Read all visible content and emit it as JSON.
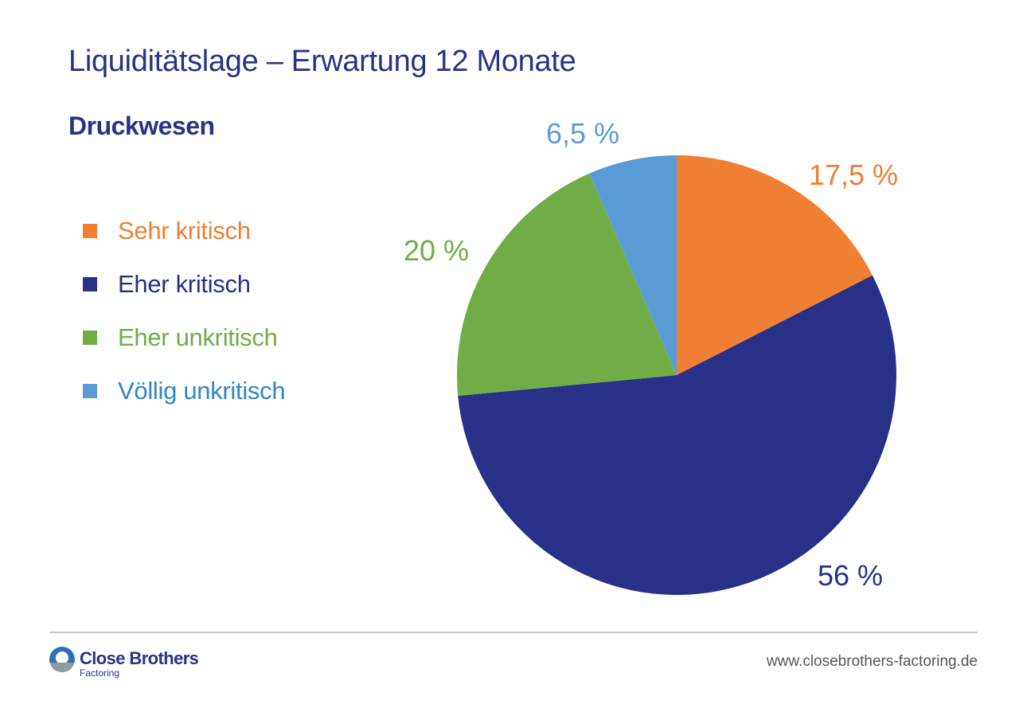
{
  "title": "Liquiditätslage – Erwartung 12 Monate",
  "subtitle": "Druckwesen",
  "colors": {
    "title": "#2a3285",
    "sehr_kritisch": "#ee7f33",
    "eher_kritisch": "#283087",
    "eher_unkritisch": "#70ad47",
    "voellig_unkritisch": "#5b9bd5"
  },
  "chart_data": {
    "type": "pie",
    "title": "Liquiditätslage – Erwartung 12 Monate",
    "subtitle": "Druckwesen",
    "legend_placement": "left",
    "slices": [
      {
        "name": "Sehr kritisch",
        "value": 17.5,
        "label": "17,5 %",
        "color": "#ee7f33",
        "legend_color": "#ee7f33"
      },
      {
        "name": "Eher kritisch",
        "value": 56,
        "label": "56 %",
        "color": "#283087",
        "legend_color": "#283087"
      },
      {
        "name": "Eher unkritisch",
        "value": 20,
        "label": "20 %",
        "color": "#70ad47",
        "legend_color": "#70ad47"
      },
      {
        "name": "Völlig unkritisch",
        "value": 6.5,
        "label": "6,5 %",
        "color": "#5b9bd5",
        "legend_color": "#2f86c8"
      }
    ]
  },
  "footer": {
    "logo_name": "Close Brothers",
    "logo_sub": "Factoring",
    "website": "www.closebrothers-factoring.de"
  }
}
